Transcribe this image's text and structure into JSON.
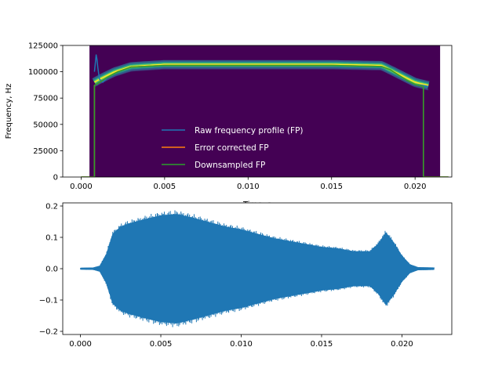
{
  "chart_data": [
    {
      "type": "heatmap",
      "overlay": "line",
      "xlabel": "Time, s",
      "ylabel": "Frequency, Hz",
      "xlim": [
        -0.0011,
        0.0222
      ],
      "ylim": [
        0,
        125000
      ],
      "x_ticks": [
        0.0,
        0.005,
        0.01,
        0.015,
        0.02
      ],
      "x_tick_labels": [
        "0.000",
        "0.005",
        "0.010",
        "0.015",
        "0.020"
      ],
      "y_ticks": [
        0,
        25000,
        50000,
        75000,
        100000,
        125000
      ],
      "y_tick_labels": [
        "0",
        "25000",
        "50000",
        "75000",
        "100000",
        "125000"
      ],
      "spectrogram": {
        "x_range": [
          0.0005,
          0.0215
        ],
        "background_color": "#440154",
        "ridge": {
          "x": [
            0.0008,
            0.001,
            0.002,
            0.003,
            0.005,
            0.01,
            0.015,
            0.018,
            0.019,
            0.02,
            0.0208
          ],
          "y": [
            90000,
            92000,
            100000,
            105000,
            107000,
            107000,
            107000,
            106000,
            98000,
            90000,
            87000
          ]
        }
      },
      "legend": {
        "location": "lower center",
        "frameless": true
      },
      "series": [
        {
          "name": "Raw frequency profile (FP)",
          "color": "#1f77b4",
          "x": [
            0.0008,
            0.0009,
            0.00095,
            0.001,
            0.0011,
            0.0013,
            0.0016,
            0.0022,
            0.003,
            0.005,
            0.01,
            0.015,
            0.018,
            0.0185,
            0.019,
            0.0195,
            0.02,
            0.0205,
            0.0208
          ],
          "y": [
            100000,
            116000,
            112000,
            104000,
            93000,
            90000,
            95000,
            100000,
            104500,
            106000,
            106000,
            106000,
            105000,
            102000,
            97000,
            92000,
            88000,
            87000,
            86000
          ]
        },
        {
          "name": "Error corrected FP",
          "color": "#ff7f0e",
          "x": [
            0.0,
            0.0008,
            0.0008,
            0.001,
            0.0016,
            0.0022,
            0.003,
            0.005,
            0.01,
            0.015,
            0.018,
            0.0185,
            0.019,
            0.0195,
            0.02,
            0.0205,
            0.0205,
            0.022
          ],
          "y": [
            0,
            0,
            87000,
            89000,
            95000,
            100000,
            104500,
            106000,
            106000,
            106000,
            105000,
            102000,
            97000,
            92000,
            88000,
            86000,
            0,
            0
          ]
        },
        {
          "name": "Downsampled FP",
          "color": "#2ca02c",
          "x": [
            0.0,
            0.0008,
            0.0008,
            0.001,
            0.0016,
            0.0022,
            0.003,
            0.005,
            0.01,
            0.015,
            0.018,
            0.0185,
            0.019,
            0.0195,
            0.02,
            0.0205,
            0.0205,
            0.022
          ],
          "y": [
            0,
            0,
            87000,
            89000,
            95000,
            100000,
            104500,
            106000,
            106000,
            106000,
            105000,
            102000,
            97000,
            92000,
            88000,
            86000,
            0,
            0
          ]
        }
      ]
    },
    {
      "type": "line",
      "xlabel": "",
      "ylabel": "",
      "xlim": [
        -0.0011,
        0.0231
      ],
      "ylim": [
        -0.21,
        0.21
      ],
      "x_ticks": [
        0.0,
        0.005,
        0.01,
        0.015,
        0.02
      ],
      "x_tick_labels": [
        "0.000",
        "0.005",
        "0.010",
        "0.015",
        "0.020"
      ],
      "y_ticks": [
        -0.2,
        -0.1,
        0.0,
        0.1,
        0.2
      ],
      "y_tick_labels": [
        "−0.2",
        "−0.1",
        "0.0",
        "0.1",
        "0.2"
      ],
      "series": [
        {
          "color": "#1f77b4",
          "style": "oscillating-envelope",
          "x": [
            0.0,
            0.0008,
            0.0012,
            0.0016,
            0.002,
            0.0025,
            0.003,
            0.004,
            0.005,
            0.006,
            0.007,
            0.008,
            0.009,
            0.01,
            0.011,
            0.012,
            0.013,
            0.014,
            0.015,
            0.016,
            0.017,
            0.018,
            0.0185,
            0.019,
            0.0195,
            0.02,
            0.0205,
            0.021,
            0.022
          ],
          "y_upper": [
            0.003,
            0.004,
            0.01,
            0.05,
            0.12,
            0.145,
            0.155,
            0.17,
            0.183,
            0.188,
            0.175,
            0.16,
            0.145,
            0.135,
            0.12,
            0.105,
            0.095,
            0.085,
            0.075,
            0.07,
            0.06,
            0.06,
            0.085,
            0.125,
            0.09,
            0.045,
            0.015,
            0.005,
            0.004
          ],
          "y_lower": [
            -0.003,
            -0.004,
            -0.01,
            -0.05,
            -0.12,
            -0.145,
            -0.155,
            -0.17,
            -0.183,
            -0.188,
            -0.175,
            -0.16,
            -0.145,
            -0.135,
            -0.12,
            -0.105,
            -0.095,
            -0.085,
            -0.075,
            -0.07,
            -0.06,
            -0.06,
            -0.085,
            -0.125,
            -0.09,
            -0.045,
            -0.015,
            -0.005,
            -0.004
          ]
        }
      ]
    }
  ]
}
